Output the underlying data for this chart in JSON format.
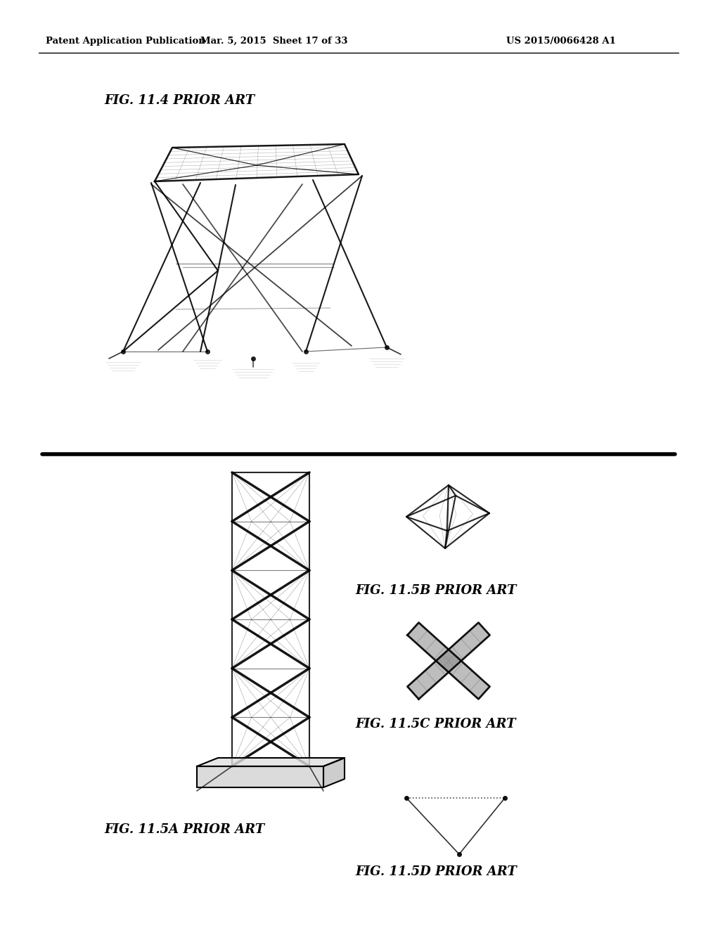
{
  "background_color": "#ffffff",
  "header_left": "Patent Application Publication",
  "header_center": "Mar. 5, 2015  Sheet 17 of 33",
  "header_right": "US 2015/0066428 A1",
  "fig114_label": "FIG. 11.4 PRIOR ART",
  "fig115a_label": "FIG. 11.5A PRIOR ART",
  "fig115b_label": "FIG. 11.5B PRIOR ART",
  "fig115c_label": "FIG. 11.5C PRIOR ART",
  "fig115d_label": "FIG. 11.5D PRIOR ART",
  "line_color": "#000000",
  "header_fontsize": 9.5,
  "label_fontsize": 13
}
